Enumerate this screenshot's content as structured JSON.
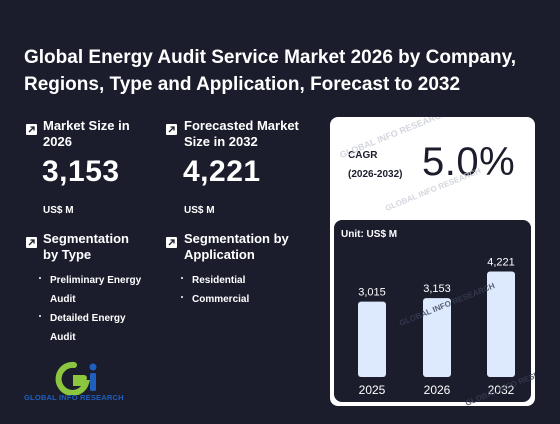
{
  "title": "Global Energy Audit Service Market 2026 by Company, Regions, Type and Application, Forecast to 2032",
  "market_size": {
    "label": "Market Size in 2026",
    "value": "3,153",
    "unit": "US$ M"
  },
  "forecast_size": {
    "label": "Forecasted Market Size in 2032",
    "value": "4,221",
    "unit": "US$ M"
  },
  "segment_type": {
    "title": "Segmentation by Type",
    "items": [
      "Preliminary Energy Audit",
      "Detailed Energy Audit"
    ]
  },
  "segment_application": {
    "title": "Segmentation by Application",
    "items": [
      "Residential",
      "Commercial"
    ]
  },
  "cagr": {
    "label_line1": "CAGR",
    "label_line2": "(2026-2032)",
    "value": "5.0%"
  },
  "logo": {
    "text": "GLOBAL INFO RESEARCH"
  },
  "watermarks": [
    "GLOBAL INFO RESEARCH",
    "GLOBAL INFO RESEARCH",
    "GLOBAL INFO RESEARCH",
    "GLOBAL INFO RESEARCH"
  ],
  "colors": {
    "background": "#1b1d2c",
    "bar_fill": "#ddeafe",
    "logo_green": "#8cc63f",
    "logo_blue": "#1f5fbf"
  },
  "chart_data": {
    "type": "bar",
    "unit_label": "Unit: US$ M",
    "categories": [
      "2025",
      "2026",
      "2032"
    ],
    "values": [
      3015,
      3153,
      4221
    ],
    "value_labels": [
      "3,015",
      "3,153",
      "4,221"
    ],
    "ylim": [
      0,
      4800
    ],
    "grid": false
  }
}
